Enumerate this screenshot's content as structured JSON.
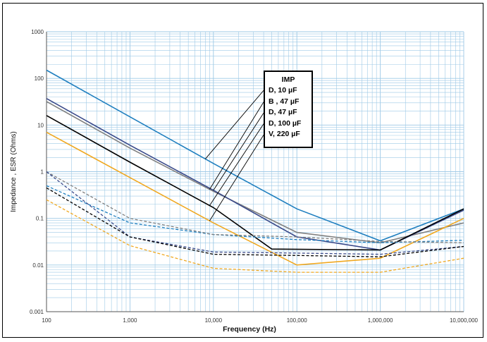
{
  "chart_data": {
    "type": "line",
    "x_scale": "log",
    "y_scale": "log",
    "xlabel": "Frequency (Hz)",
    "ylabel": "Impedance , ESR (Ohms)",
    "xlim": [
      100,
      10000000
    ],
    "ylim": [
      0.001,
      1000
    ],
    "x_ticks": [
      "100",
      "1,000",
      "10,000",
      "100,000",
      "1,000,000",
      "10,000,000"
    ],
    "y_ticks": [
      "0.001",
      "0.01",
      "0.1",
      "1",
      "10",
      "100",
      "1000"
    ],
    "grid": true,
    "legend": {
      "title": "IMP",
      "placement": "center-right",
      "entries": [
        "D, 10 µF",
        "B , 47 µF",
        "D, 47 µF",
        "D, 100 µF",
        "V, 220 µF"
      ]
    },
    "series": [
      {
        "name": "D, 10 µF",
        "kind": "impedance",
        "color": "#1f7fbf",
        "style": "solid",
        "x": [
          100,
          1000,
          10000,
          100000,
          1000000,
          10000000
        ],
        "y": [
          150,
          15,
          1.5,
          0.16,
          0.033,
          0.16
        ]
      },
      {
        "name": "B , 47 µF",
        "kind": "impedance",
        "color": "#808080",
        "style": "solid",
        "x": [
          100,
          1000,
          10000,
          100000,
          1000000,
          10000000
        ],
        "y": [
          32,
          3.2,
          0.38,
          0.05,
          0.03,
          0.08
        ]
      },
      {
        "name": "D, 47 µF",
        "kind": "impedance",
        "color": "#3a4a8a",
        "style": "solid",
        "x": [
          100,
          1000,
          10000,
          100000,
          1000000,
          10000000
        ],
        "y": [
          37,
          3.7,
          0.4,
          0.04,
          0.021,
          0.15
        ]
      },
      {
        "name": "D, 100 µF",
        "kind": "impedance",
        "color": "#000000",
        "style": "solid",
        "x": [
          100,
          1000,
          10000,
          50000,
          1000000,
          10000000
        ],
        "y": [
          16,
          1.6,
          0.17,
          0.022,
          0.021,
          0.16
        ]
      },
      {
        "name": "V, 220 µF",
        "kind": "impedance",
        "color": "#f0a820",
        "style": "solid",
        "x": [
          100,
          1000,
          10000,
          100000,
          1000000,
          10000000
        ],
        "y": [
          7,
          0.75,
          0.08,
          0.01,
          0.014,
          0.1
        ]
      },
      {
        "kind": "esr",
        "color": "#1f7fbf",
        "style": "dashed",
        "x": [
          100,
          1000,
          10000,
          100000,
          1000000,
          10000000
        ],
        "y": [
          0.5,
          0.08,
          0.045,
          0.035,
          0.03,
          0.034
        ]
      },
      {
        "kind": "esr",
        "color": "#808080",
        "style": "dashed",
        "x": [
          100,
          1000,
          10000,
          100000,
          1000000,
          10000000
        ],
        "y": [
          1.0,
          0.1,
          0.045,
          0.04,
          0.032,
          0.03
        ]
      },
      {
        "kind": "esr",
        "color": "#3a4a8a",
        "style": "dashed",
        "x": [
          100,
          1000,
          10000,
          100000,
          1000000,
          10000000
        ],
        "y": [
          1.0,
          0.04,
          0.019,
          0.018,
          0.017,
          0.025
        ]
      },
      {
        "kind": "esr",
        "color": "#000000",
        "style": "dashed",
        "x": [
          100,
          1000,
          10000,
          100000,
          1000000,
          10000000
        ],
        "y": [
          0.45,
          0.04,
          0.017,
          0.016,
          0.015,
          0.025
        ]
      },
      {
        "kind": "esr",
        "color": "#f0a820",
        "style": "dashed",
        "x": [
          100,
          1000,
          10000,
          100000,
          1000000,
          10000000
        ],
        "y": [
          0.25,
          0.026,
          0.0085,
          0.007,
          0.007,
          0.014
        ]
      }
    ],
    "annotation_pointers": [
      {
        "to_series": "D, 10 µF",
        "x": 8000
      },
      {
        "to_series": "B , 47 µF",
        "x": 9000
      },
      {
        "to_series": "D, 47 µF",
        "x": 10000
      },
      {
        "to_series": "D, 100 µF",
        "x": 9000
      },
      {
        "to_series": "V, 220 µF",
        "x": 9000
      }
    ]
  }
}
